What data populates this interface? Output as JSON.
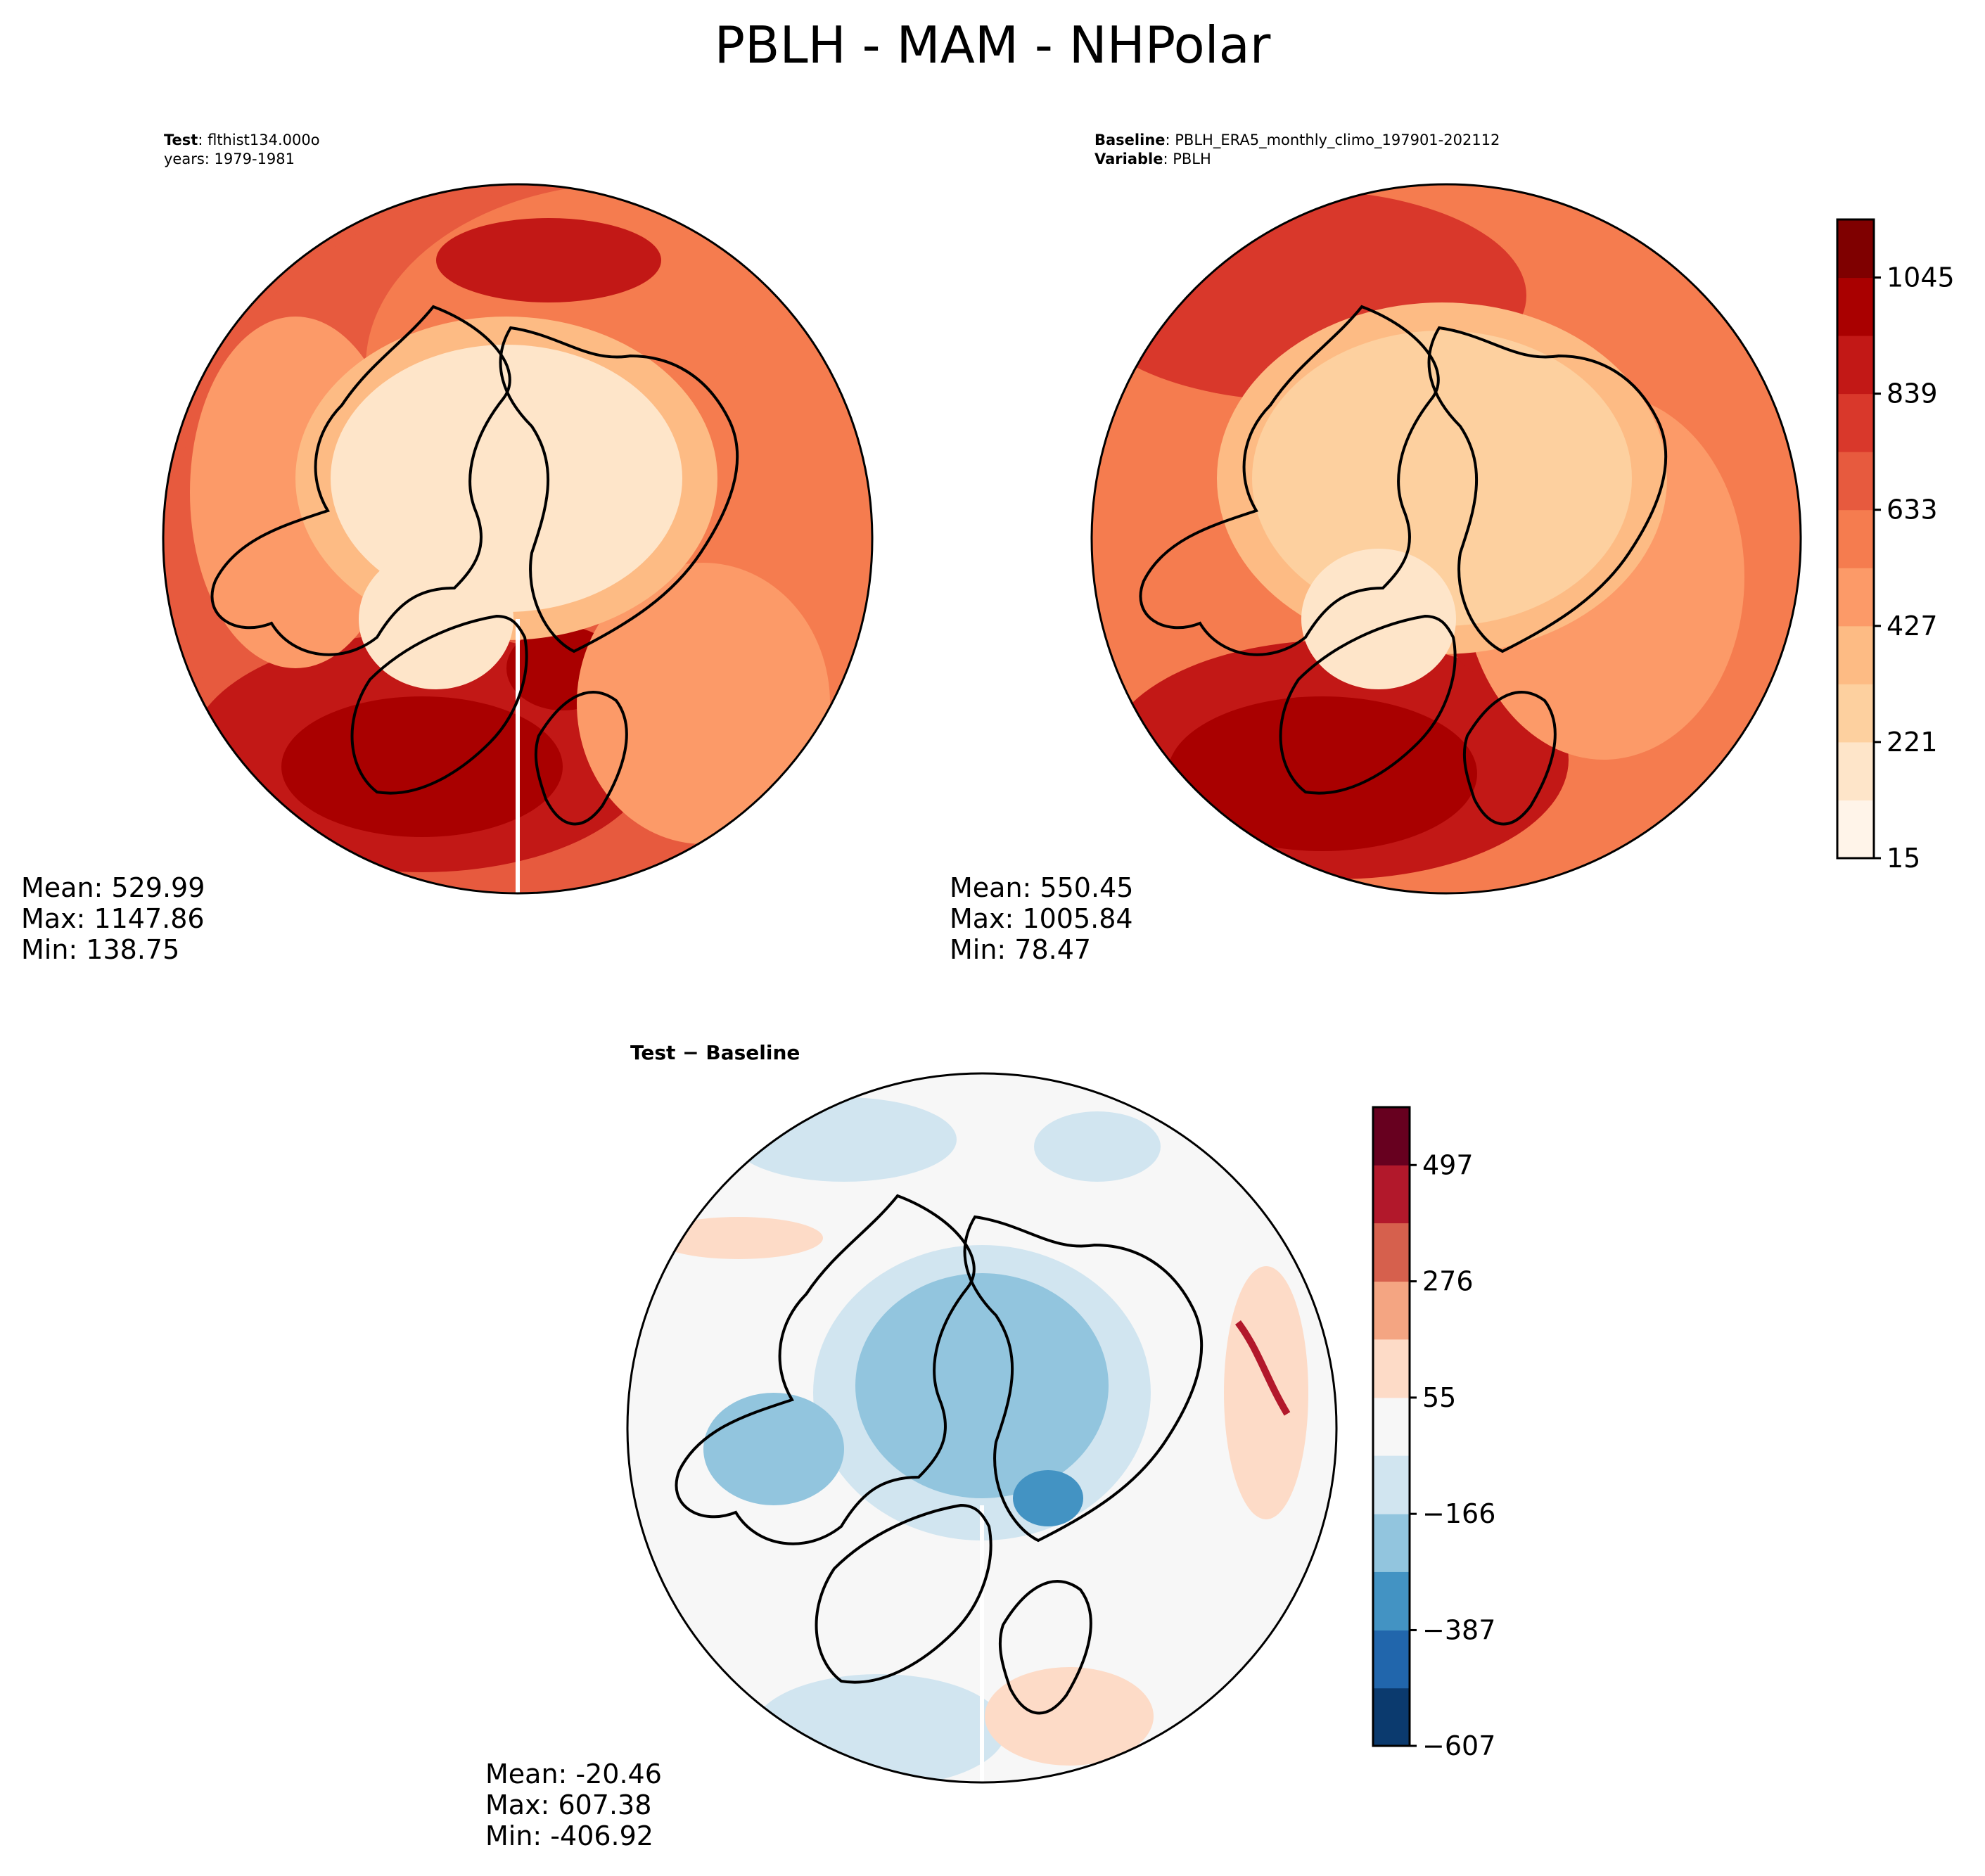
{
  "figure": {
    "title": "PBLH - MAM - NHPolar"
  },
  "colors": {
    "abs_scale": [
      "#fff4e9",
      "#fee5c9",
      "#fdd09f",
      "#fdbb84",
      "#fc9a68",
      "#f57c4f",
      "#e75a3e",
      "#d9382b",
      "#c21816",
      "#a90000",
      "#7f0000"
    ],
    "diff_scale": [
      "#0b3a6e",
      "#2166ac",
      "#4393c3",
      "#92c5de",
      "#d1e5f0",
      "#f7f7f7",
      "#fddbc7",
      "#f4a582",
      "#d6604d",
      "#b2182b",
      "#67001f"
    ],
    "coastline": "#000000"
  },
  "panels": {
    "test": {
      "label_bold": "Test",
      "label_text": ": flthist134.000o",
      "years_line": "years: 1979-1981",
      "mean": "Mean: 529.99",
      "max": "Max: 1147.86",
      "min": "Min: 138.75"
    },
    "baseline": {
      "label_bold": "Baseline",
      "label_text": ": PBLH_ERA5_monthly_climo_197901-202112",
      "variable_bold": "Variable",
      "variable_text": ": PBLH",
      "mean": "Mean: 550.45",
      "max": "Max: 1005.84",
      "min": "Min: 78.47"
    },
    "diff": {
      "title": "Test − Baseline",
      "mean": "Mean: -20.46",
      "max": "Max: 607.38",
      "min": "Min: -406.92"
    }
  },
  "chart_data": [
    {
      "type": "heatmap",
      "name": "Test",
      "projection": "north-polar-stereographic",
      "colorbar": {
        "ticks": [
          "15",
          "221",
          "427",
          "633",
          "839",
          "1045"
        ],
        "levels": [
          15,
          118,
          221,
          324,
          427,
          530,
          633,
          736,
          839,
          942,
          1045,
          1148
        ]
      }
    },
    {
      "type": "heatmap",
      "name": "Baseline",
      "projection": "north-polar-stereographic"
    },
    {
      "type": "heatmap",
      "name": "Test − Baseline",
      "projection": "north-polar-stereographic",
      "colorbar": {
        "ticks": [
          "−607",
          "−387",
          "−166",
          "55",
          "276",
          "497"
        ],
        "levels": [
          -607,
          -497,
          -387,
          -276,
          -166,
          -55,
          55,
          166,
          276,
          387,
          497,
          607
        ]
      }
    }
  ]
}
